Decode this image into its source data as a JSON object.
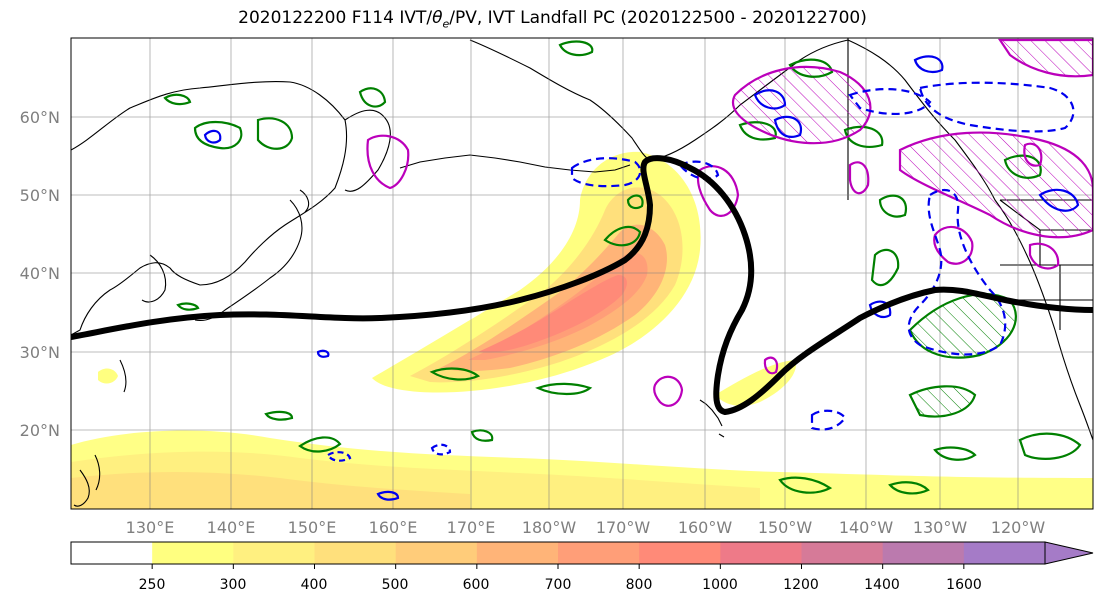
{
  "title": "2020122200 F114 IVT/θe/PV, IVT Landfall PC (2020122500 - 2020122700)",
  "title_parts": {
    "pre": "2020122200 F114 IVT/",
    "theta": "θ",
    "theta_sub": "e",
    "post": "/PV, IVT Landfall PC (2020122500 - 2020122700)"
  },
  "map": {
    "lat_labels": [
      "60°N",
      "50°N",
      "40°N",
      "30°N",
      "20°N"
    ],
    "lon_labels": [
      "130°E",
      "140°E",
      "150°E",
      "160°E",
      "170°E",
      "180°W",
      "170°W",
      "160°W",
      "150°W",
      "140°W",
      "130°W",
      "120°W"
    ],
    "ivt_fill_colors": [
      "#ffffff",
      "#ffff80",
      "#fff080",
      "#ffe07c",
      "#ffcc7a",
      "#ffb478",
      "#ff9e78",
      "#ff8a78",
      "#ee7a88",
      "#d67a98",
      "#bb7aae",
      "#a57bc7"
    ],
    "contour_colors": {
      "pc": "#000000",
      "pv": "#008000",
      "theta_e_pos": "#bb00bb",
      "theta_e_neg": "#0000ee"
    }
  },
  "colorbar": {
    "ticks": [
      "250",
      "300",
      "400",
      "500",
      "600",
      "700",
      "800",
      "1000",
      "1200",
      "1400",
      "1600"
    ],
    "colors": [
      "#ffffff",
      "#ffff80",
      "#fff080",
      "#ffe07c",
      "#ffcc7a",
      "#ffb478",
      "#ff9e78",
      "#ff8a78",
      "#ee7a88",
      "#d67a98",
      "#bb7aae",
      "#a57bc7"
    ]
  }
}
